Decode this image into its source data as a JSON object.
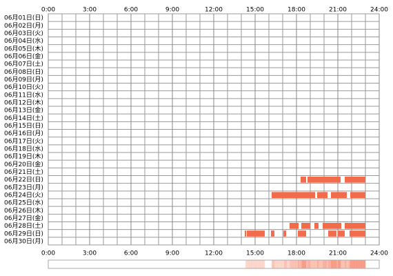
{
  "chart_data": {
    "type": "timeline",
    "categories": [
      "06月01日(日)",
      "06月02日(月)",
      "06月03日(火)",
      "06月04日(水)",
      "06月05日(木)",
      "06月06日(金)",
      "06月07日(土)",
      "06月08日(日)",
      "06月09日(月)",
      "06月10日(火)",
      "06月11日(水)",
      "06月12日(木)",
      "06月13日(金)",
      "06月14日(土)",
      "06月15日(日)",
      "06月16日(月)",
      "06月17日(火)",
      "06月18日(水)",
      "06月19日(木)",
      "06月20日(金)",
      "06月21日(土)",
      "06月22日(日)",
      "06月23日(月)",
      "06月24日(火)",
      "06月25日(水)",
      "06月26日(木)",
      "06月27日(金)",
      "06月28日(土)",
      "06月29日(日)",
      "06月30日(月)"
    ],
    "segments": [
      [],
      [],
      [],
      [],
      [],
      [],
      [],
      [],
      [],
      [],
      [],
      [],
      [],
      [],
      [],
      [],
      [],
      [],
      [],
      [],
      [],
      [
        [
          18.3,
          18.7
        ],
        [
          18.8,
          21.2
        ],
        [
          21.5,
          23.0
        ]
      ],
      [],
      [
        [
          16.2,
          19.35
        ],
        [
          19.5,
          20.25
        ],
        [
          20.5,
          21.65
        ],
        [
          21.9,
          23.0
        ]
      ],
      [],
      [],
      [],
      [
        [
          17.5,
          18.15
        ],
        [
          18.35,
          19.0
        ],
        [
          19.3,
          19.6
        ],
        [
          19.9,
          21.25
        ],
        [
          21.5,
          23.0
        ]
      ],
      [
        [
          14.25,
          14.35
        ],
        [
          14.4,
          15.7
        ],
        [
          16.15,
          16.4
        ],
        [
          17.05,
          17.25
        ],
        [
          18.1,
          18.7
        ],
        [
          20.3,
          20.9
        ],
        [
          21.0,
          21.5
        ],
        [
          21.85,
          23.0
        ]
      ],
      []
    ],
    "color": "#f26b4b",
    "xlim": [
      0,
      24
    ],
    "xticks": [
      {
        "value": 0,
        "label": "0:00"
      },
      {
        "value": 3,
        "label": "3:00"
      },
      {
        "value": 6,
        "label": "6:00"
      },
      {
        "value": 9,
        "label": "9:00"
      },
      {
        "value": 12,
        "label": "12:00"
      },
      {
        "value": 15,
        "label": "15:00"
      },
      {
        "value": 18,
        "label": "18:00"
      },
      {
        "value": 21,
        "label": "21:00"
      },
      {
        "value": 24,
        "label": "24:00"
      }
    ],
    "grid": true
  }
}
